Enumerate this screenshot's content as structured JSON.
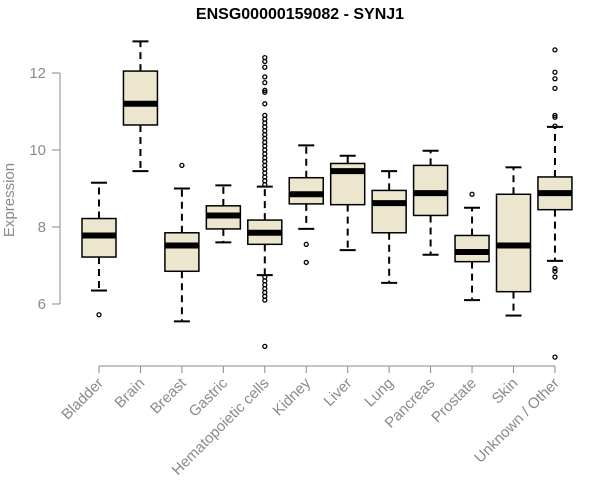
{
  "chart_data": {
    "type": "boxplot",
    "title": "ENSG00000159082 - SYNJ1",
    "xlabel": "",
    "ylabel": "Expression",
    "ylim": [
      4.5,
      13.1
    ],
    "yticks": [
      6,
      8,
      10,
      12
    ],
    "grid": false,
    "colors": {
      "box_fill": "#ede6cf",
      "axis": "#8a8a8a",
      "label": "#8a8a8a"
    },
    "categories": [
      "Bladder",
      "Brain",
      "Breast",
      "Gastric",
      "Hematopoietic cells",
      "Kidney",
      "Liver",
      "Lung",
      "Pancreas",
      "Prostate",
      "Skin",
      "Unknown / Other"
    ],
    "boxes": [
      {
        "name": "Bladder",
        "wlo": 6.35,
        "q1": 7.22,
        "median": 7.78,
        "q3": 8.22,
        "whi": 9.15,
        "outliers": [
          5.72
        ]
      },
      {
        "name": "Brain",
        "wlo": 9.45,
        "q1": 10.65,
        "median": 11.2,
        "q3": 12.05,
        "whi": 12.82,
        "outliers": []
      },
      {
        "name": "Breast",
        "wlo": 5.55,
        "q1": 6.85,
        "median": 7.52,
        "q3": 7.85,
        "whi": 9.0,
        "outliers": [
          9.6
        ]
      },
      {
        "name": "Gastric",
        "wlo": 7.6,
        "q1": 7.95,
        "median": 8.3,
        "q3": 8.55,
        "whi": 9.08,
        "outliers": []
      },
      {
        "name": "Hematopoietic cells",
        "wlo": 6.75,
        "q1": 7.55,
        "median": 7.85,
        "q3": 8.18,
        "whi": 9.05,
        "outliers": [
          12.4,
          12.3,
          12.15,
          11.9,
          11.75,
          11.55,
          11.5,
          11.2,
          10.9,
          10.8,
          10.7,
          10.6,
          10.5,
          10.4,
          10.3,
          10.2,
          10.1,
          10.0,
          9.9,
          9.8,
          9.7,
          9.6,
          9.5,
          9.4,
          9.3,
          9.2,
          9.1,
          6.7,
          6.6,
          6.5,
          6.4,
          6.3,
          6.2,
          6.1,
          4.9
        ]
      },
      {
        "name": "Kidney",
        "wlo": 7.95,
        "q1": 8.6,
        "median": 8.85,
        "q3": 9.28,
        "whi": 10.12,
        "outliers": [
          7.55,
          7.08
        ]
      },
      {
        "name": "Liver",
        "wlo": 7.4,
        "q1": 8.58,
        "median": 9.45,
        "q3": 9.65,
        "whi": 9.85,
        "outliers": []
      },
      {
        "name": "Lung",
        "wlo": 6.55,
        "q1": 7.85,
        "median": 8.62,
        "q3": 8.95,
        "whi": 9.45,
        "outliers": []
      },
      {
        "name": "Pancreas",
        "wlo": 7.28,
        "q1": 8.3,
        "median": 8.88,
        "q3": 9.6,
        "whi": 9.98,
        "outliers": []
      },
      {
        "name": "Prostate",
        "wlo": 6.1,
        "q1": 7.1,
        "median": 7.35,
        "q3": 7.78,
        "whi": 8.5,
        "outliers": [
          8.85
        ]
      },
      {
        "name": "Skin",
        "wlo": 5.7,
        "q1": 6.32,
        "median": 7.52,
        "q3": 8.85,
        "whi": 9.55,
        "outliers": []
      },
      {
        "name": "Unknown / Other",
        "wlo": 7.12,
        "q1": 8.45,
        "median": 8.88,
        "q3": 9.3,
        "whi": 10.6,
        "outliers": [
          12.6,
          12.02,
          11.85,
          11.6,
          10.9,
          10.85,
          10.62,
          6.92,
          6.85,
          6.7,
          4.62
        ]
      }
    ]
  }
}
